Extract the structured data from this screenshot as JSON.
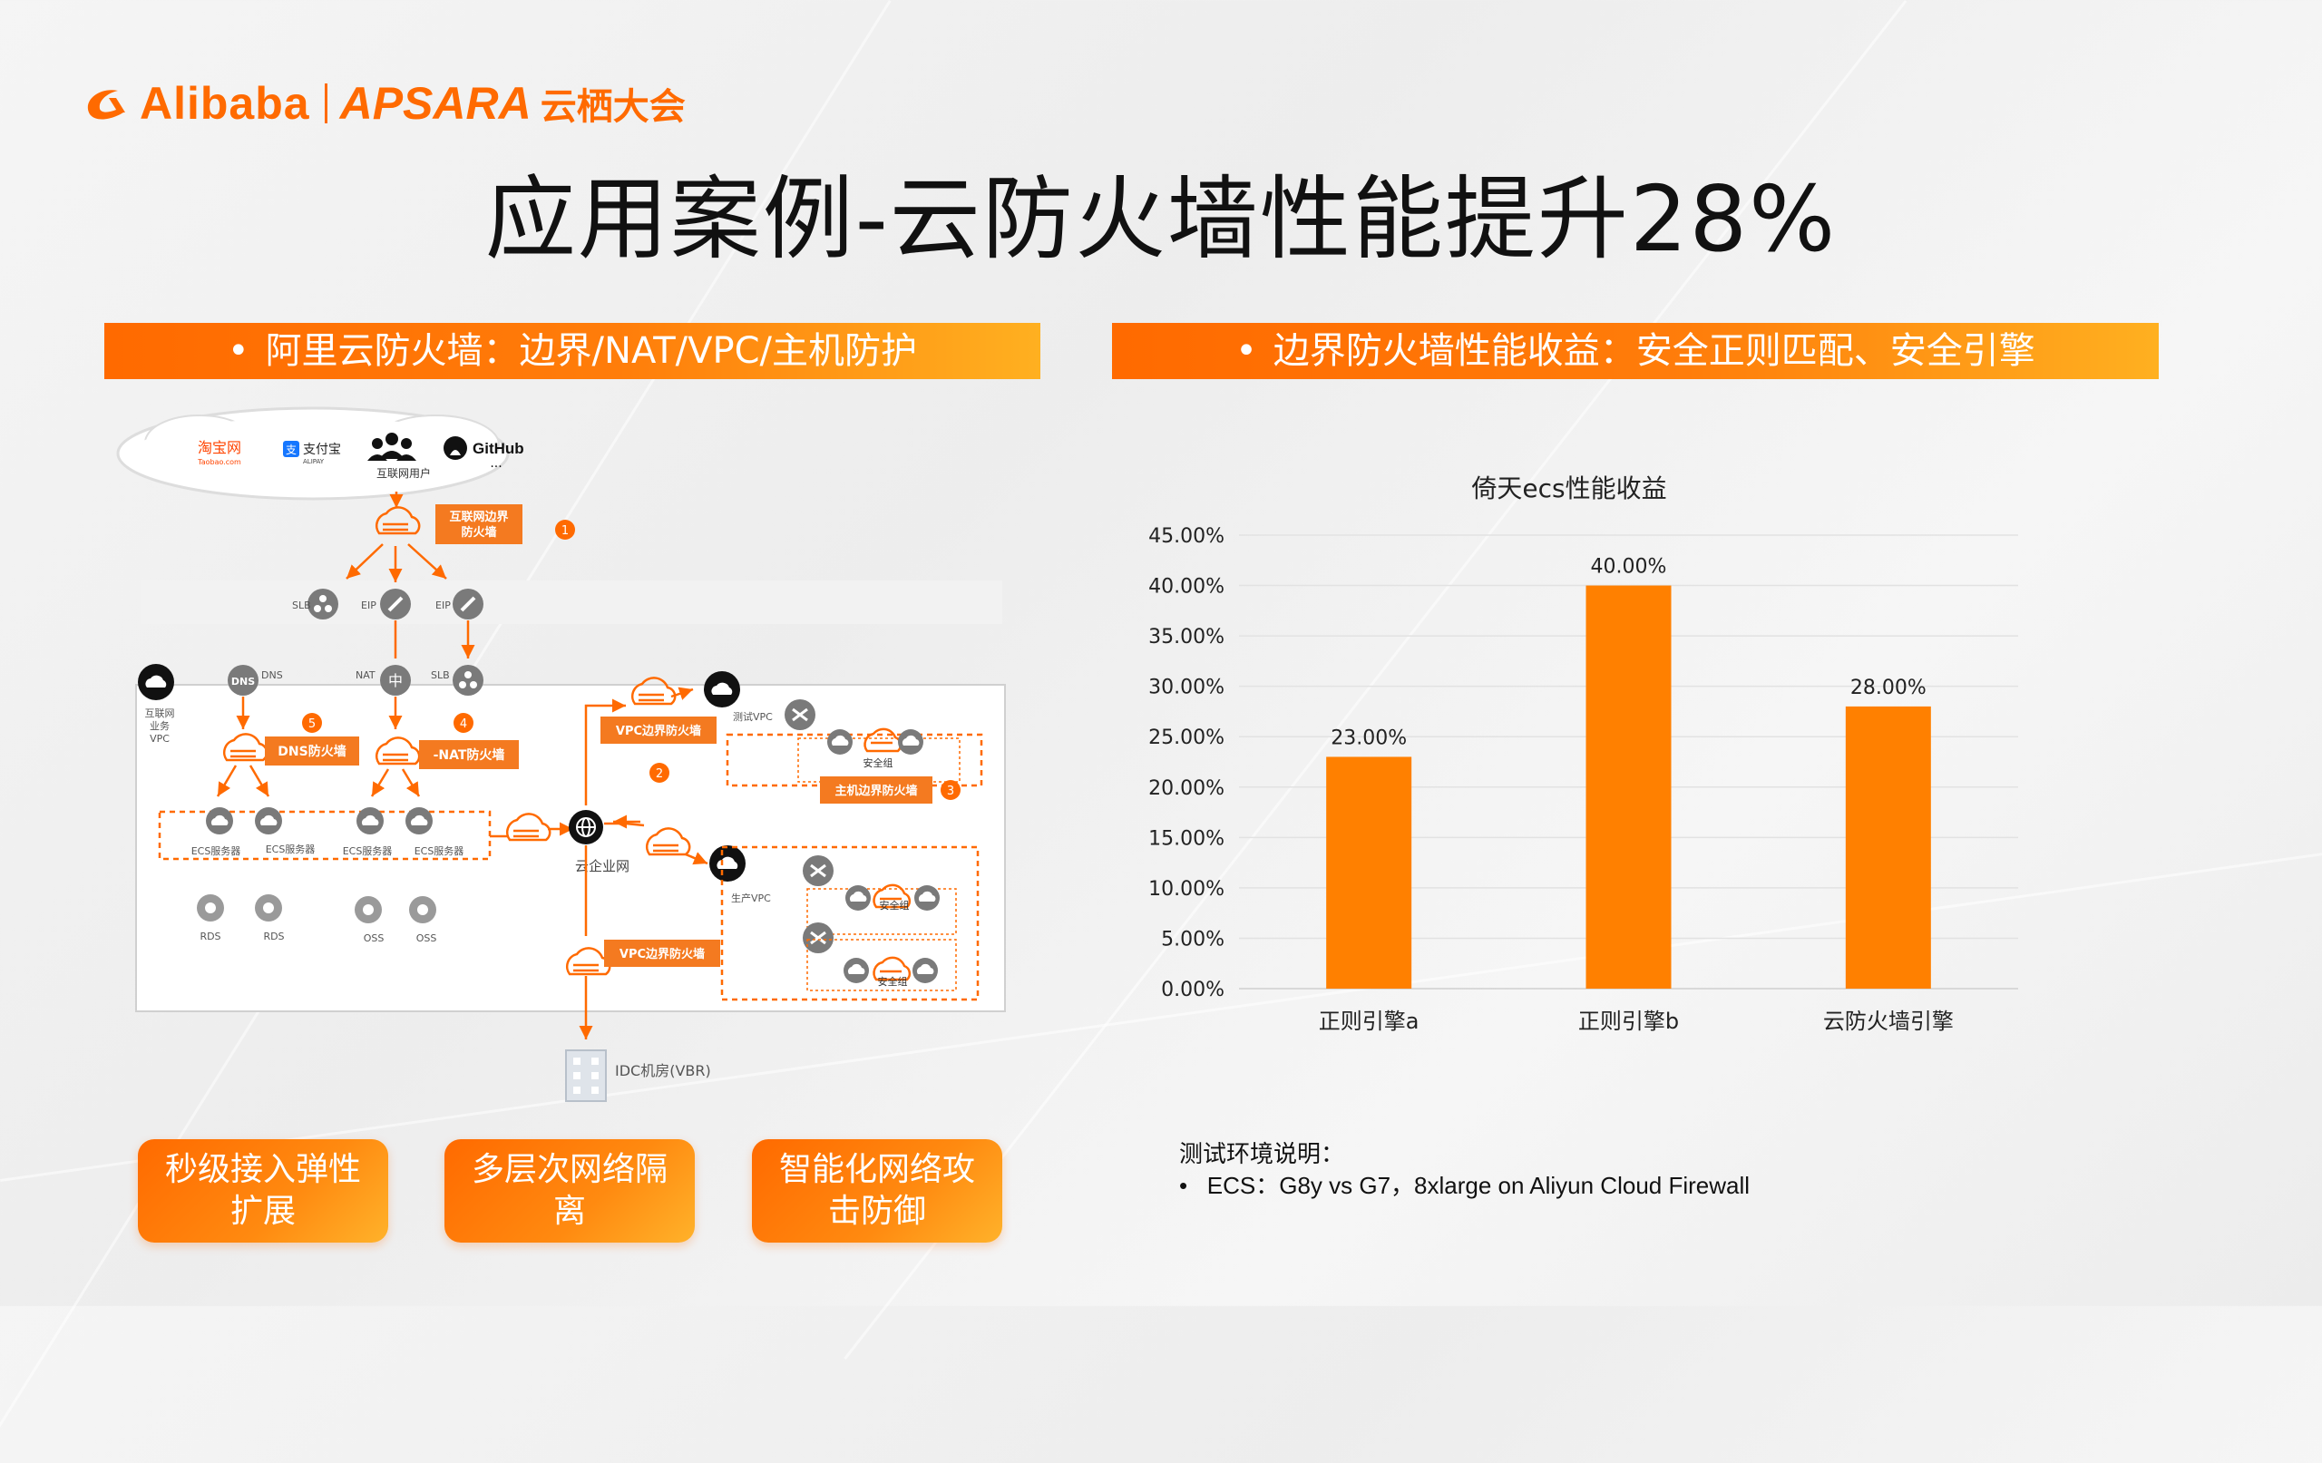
{
  "brand": {
    "alibaba": "Alibaba",
    "apsara": "APSARA",
    "apsara_cn": "云栖大会",
    "color": "#ff6a00"
  },
  "title": "应用案例-云防火墙性能提升28%",
  "left_banner": "阿里云防火墙：边界/NAT/VPC/主机防护",
  "right_banner": "边界防火墙性能收益：安全正则匹配、安全引擎",
  "diagram": {
    "cloud_users": {
      "taobao": "淘宝网",
      "taobao_sub": "Taobao.com",
      "alipay": "支付宝",
      "alipay_sub": "ALIPAY",
      "github": "GitHub",
      "ellipsis": "...",
      "label": "互联网用户"
    },
    "internet_fw": "互联网边界防火墙",
    "badges": [
      "1",
      "2",
      "3",
      "4",
      "5"
    ],
    "slb": "SLB",
    "eip": "EIP",
    "nat": "NAT",
    "dns": "DNS",
    "internet_vpc": "互联网业务VPC",
    "dns_fw": "DNS防火墙",
    "nat_fw": "-NAT防火墙",
    "vpc_fw": "VPC边界防火墙",
    "test_vpc": "测试VPC",
    "security_group": "安全组",
    "host_fw": "主机边界防火墙",
    "ecs": "ECS服务器",
    "cen": "云企业网",
    "prod_vpc": "生产VPC",
    "rds": "RDS",
    "oss": "OSS",
    "idc": "IDC机房(VBR)"
  },
  "pills": [
    "秒级接入弹性扩展",
    "多层次网络隔离",
    "智能化网络攻击防御"
  ],
  "chart_data": {
    "type": "bar",
    "title": "倚天ecs性能收益",
    "categories": [
      "正则引擎a",
      "正则引擎b",
      "云防火墙引擎"
    ],
    "values": [
      23.0,
      40.0,
      28.0
    ],
    "data_labels": [
      "23.00%",
      "40.00%",
      "28.00%"
    ],
    "ylim": [
      0,
      45
    ],
    "yticks": [
      "0.00%",
      "5.00%",
      "10.00%",
      "15.00%",
      "20.00%",
      "25.00%",
      "30.00%",
      "35.00%",
      "40.00%",
      "45.00%"
    ],
    "ytick_values": [
      0,
      5,
      10,
      15,
      20,
      25,
      30,
      35,
      40,
      45
    ],
    "grid": true,
    "bar_color": "#ff8000"
  },
  "notes": {
    "heading": "测试环境说明：",
    "items": [
      "ECS：G8y vs G7，8xlarge on Aliyun Cloud Firewall"
    ]
  }
}
